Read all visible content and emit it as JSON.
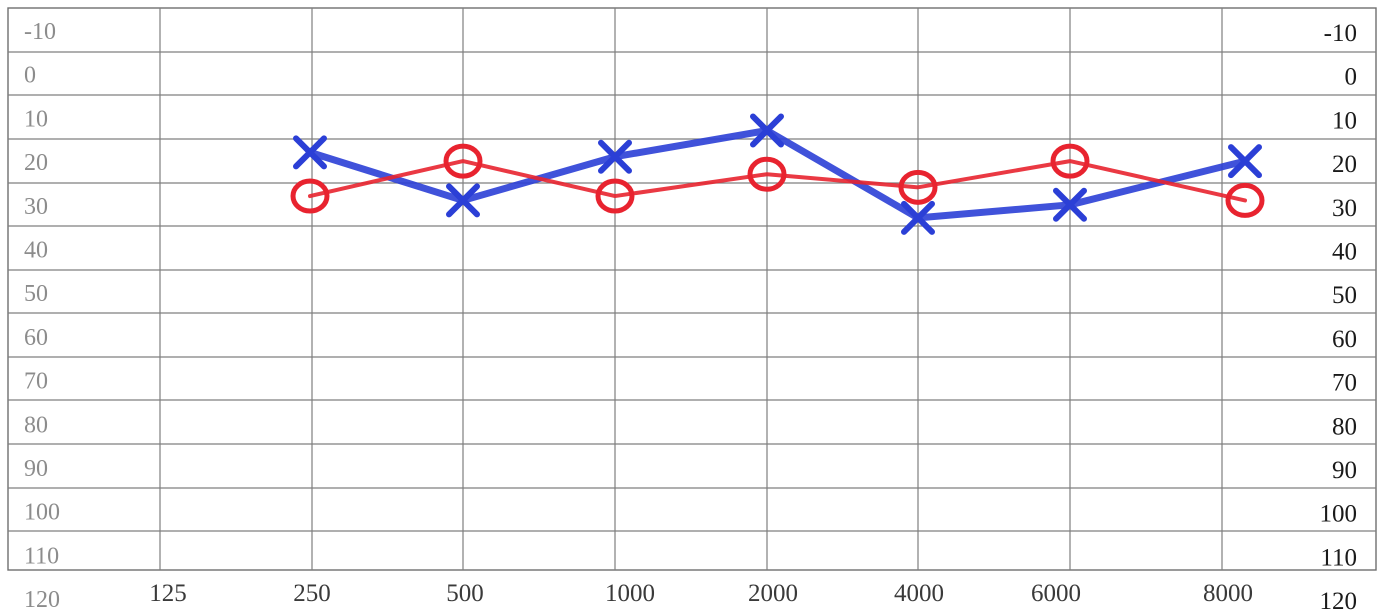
{
  "chart_data": {
    "type": "line",
    "x": [
      "250",
      "500",
      "1000",
      "2000",
      "4000",
      "6000",
      "8000"
    ],
    "x_tick_labels": [
      "125",
      "250",
      "500",
      "1000",
      "2000",
      "4000",
      "6000",
      "8000"
    ],
    "y_tick_labels": [
      "-10",
      "0",
      "10",
      "20",
      "30",
      "40",
      "50",
      "60",
      "70",
      "80",
      "90",
      "100",
      "110",
      "120"
    ],
    "ylim": [
      -10,
      120
    ],
    "y_inverted": true,
    "grid": true,
    "series": [
      {
        "marker": "x",
        "color": "#2b3fd6",
        "values": [
          18,
          29,
          19,
          13,
          33,
          30,
          20
        ]
      },
      {
        "marker": "circle",
        "color": "#e8232f",
        "values": [
          28,
          20,
          28,
          23,
          26,
          20,
          29
        ]
      }
    ]
  }
}
